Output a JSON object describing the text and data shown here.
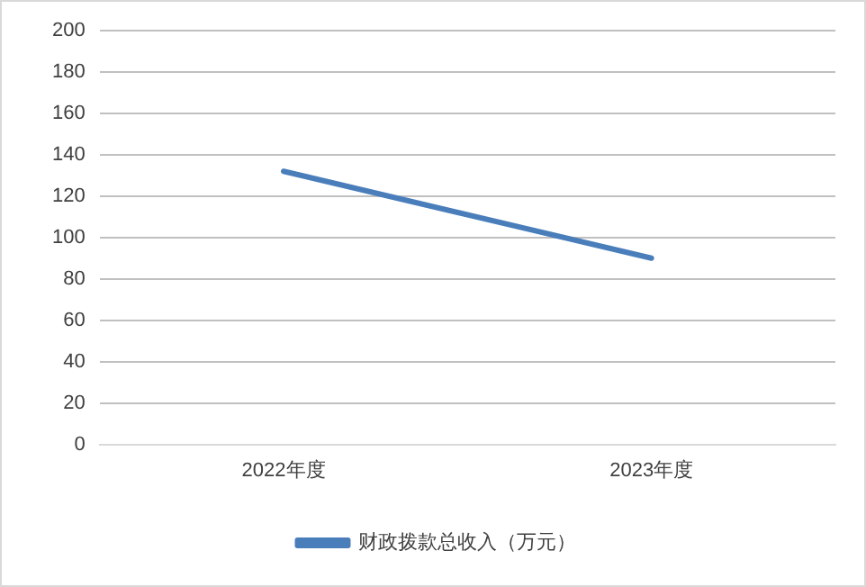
{
  "chart_data": {
    "type": "line",
    "categories": [
      "2022年度",
      "2023年度"
    ],
    "series": [
      {
        "name": "财政拨款总收入（万元）",
        "color": "#4a7ebb",
        "values": [
          132,
          90
        ]
      }
    ],
    "ylim": [
      0,
      200
    ],
    "yticks": [
      0,
      20,
      40,
      60,
      80,
      100,
      120,
      140,
      160,
      180,
      200
    ],
    "grid": "y",
    "legend": "bottom",
    "marker": "none",
    "line_style": "solid"
  }
}
